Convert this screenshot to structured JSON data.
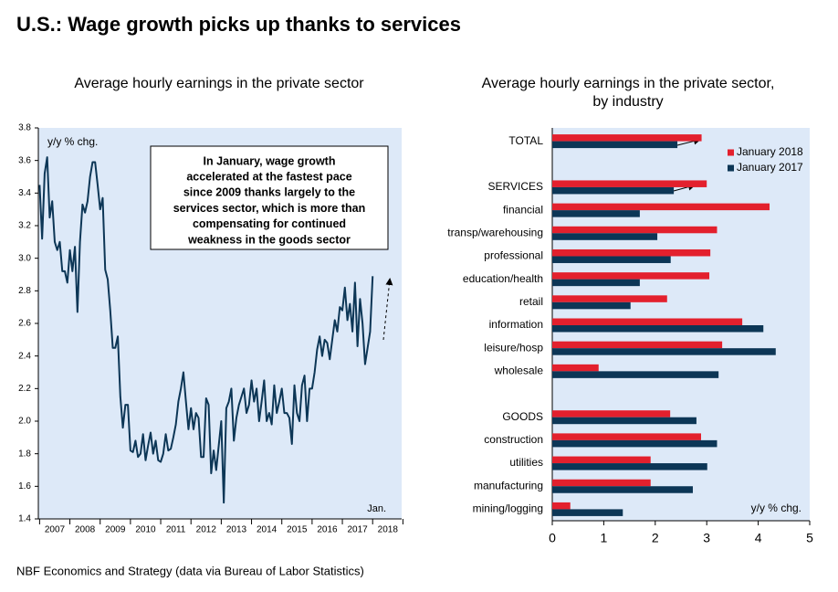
{
  "title": "U.S.: Wage growth picks up thanks to services",
  "source": "NBF Economics and Strategy (data via Bureau of Labor Statistics)",
  "chart_data": [
    {
      "type": "line",
      "title": "Average hourly earnings  in the private sector",
      "y_label": "y/y % chg.",
      "annotation": [
        "In January, wage growth",
        "accelerated at the fastest pace",
        "since 2009 thanks largely to the",
        "services sector, which is more than",
        "compensating for continued",
        "weakness in the goods sector"
      ],
      "end_label": "Jan.",
      "color": "#0c3656",
      "grid": false,
      "ylim": [
        1.4,
        3.8
      ],
      "yticks": [
        1.4,
        1.6,
        1.8,
        {
          "value": 2,
          "label": "2.0"
        },
        2.2,
        2.4,
        2.6,
        2.8,
        {
          "value": 3,
          "label": "3.0"
        },
        3.2,
        3.4,
        3.6,
        3.8
      ],
      "categories": [
        null,
        null,
        null,
        null,
        null,
        null,
        "2007",
        null,
        null,
        null,
        null,
        null,
        null,
        null,
        null,
        null,
        null,
        null,
        "2008",
        null,
        null,
        null,
        null,
        null,
        null,
        null,
        null,
        null,
        null,
        null,
        "2009",
        null,
        null,
        null,
        null,
        null,
        null,
        null,
        null,
        null,
        null,
        null,
        "2010",
        null,
        null,
        null,
        null,
        null,
        null,
        null,
        null,
        null,
        null,
        null,
        "2011",
        null,
        null,
        null,
        null,
        null,
        null,
        null,
        null,
        null,
        null,
        null,
        "2012",
        null,
        null,
        null,
        null,
        null,
        null,
        null,
        null,
        null,
        null,
        null,
        "2013",
        null,
        null,
        null,
        null,
        null,
        null,
        null,
        null,
        null,
        null,
        null,
        "2014",
        null,
        null,
        null,
        null,
        null,
        null,
        null,
        null,
        null,
        null,
        null,
        "2015",
        null,
        null,
        null,
        null,
        null,
        null,
        null,
        null,
        null,
        null,
        null,
        "2016",
        null,
        null,
        null,
        null,
        null,
        null,
        null,
        null,
        null,
        null,
        null,
        "2017",
        null,
        null,
        null,
        null,
        null,
        null,
        null,
        null,
        null,
        null,
        null,
        "2018",
        null,
        null,
        null,
        null,
        null
      ],
      "values": [
        3.45,
        3.12,
        3.52,
        3.62,
        3.25,
        3.35,
        3.1,
        3.05,
        3.1,
        2.92,
        2.92,
        2.85,
        3.05,
        2.92,
        3.07,
        2.67,
        3.1,
        3.33,
        3.28,
        3.35,
        3.5,
        3.59,
        3.59,
        3.45,
        3.3,
        3.37,
        2.93,
        2.87,
        2.68,
        2.45,
        2.45,
        2.52,
        2.15,
        1.96,
        2.1,
        2.1,
        1.82,
        1.81,
        1.88,
        1.78,
        1.8,
        1.92,
        1.76,
        1.85,
        1.93,
        1.8,
        1.88,
        1.76,
        1.75,
        1.8,
        1.92,
        1.82,
        1.83,
        1.9,
        1.98,
        2.12,
        2.2,
        2.3,
        2.12,
        1.95,
        2.08,
        1.95,
        2.05,
        2.02,
        1.78,
        1.78,
        2.14,
        2.1,
        1.68,
        1.82,
        1.7,
        1.85,
        2.0,
        1.5,
        2.08,
        2.12,
        2.2,
        1.88,
        2.02,
        2.1,
        2.15,
        2.2,
        2.05,
        2.1,
        2.25,
        2.12,
        2.2,
        2.0,
        2.12,
        2.25,
        2.0,
        2.05,
        1.98,
        2.22,
        2.05,
        2.12,
        2.2,
        2.05,
        2.05,
        2.02,
        1.86,
        2.22,
        2.05,
        2.0,
        2.22,
        2.28,
        2.0,
        2.2,
        2.2,
        2.3,
        2.44,
        2.52,
        2.4,
        2.5,
        2.48,
        2.38,
        2.5,
        2.62,
        2.55,
        2.7,
        2.68,
        2.82,
        2.62,
        2.72,
        2.55,
        2.85,
        2.46,
        2.75,
        2.6,
        2.35,
        2.45,
        2.55,
        2.89,
        null,
        null,
        null,
        null,
        null,
        null,
        null,
        null,
        null,
        null,
        null
      ]
    },
    {
      "type": "bar",
      "orientation": "horizontal",
      "title": "Average hourly earnings  in the private sector,",
      "subtitle": "by industry",
      "x_label": "y/y % chg.",
      "legend": "top-right",
      "grid": false,
      "xlim": [
        0,
        5
      ],
      "xticks": [
        0,
        1,
        2,
        3,
        4,
        5
      ],
      "categories": [
        "TOTAL",
        null,
        "SERVICES",
        "financial",
        "transp/warehousing",
        "professional",
        "education/health",
        "retail",
        "information",
        "leisure/hosp",
        "wholesale",
        null,
        "GOODS",
        "construction",
        "utilities",
        "manufacturing",
        "mining/logging"
      ],
      "series": [
        {
          "name": "January 2018",
          "color": "#e3202d",
          "values": [
            2.9,
            null,
            3.0,
            4.22,
            3.2,
            3.07,
            3.05,
            2.23,
            3.69,
            3.3,
            0.9,
            null,
            2.29,
            2.89,
            1.91,
            1.91,
            0.35
          ]
        },
        {
          "name": "January 2017",
          "color": "#0c3656",
          "values": [
            2.43,
            null,
            2.36,
            1.7,
            2.04,
            2.3,
            1.7,
            1.52,
            4.1,
            4.34,
            3.23,
            null,
            2.8,
            3.2,
            3.01,
            2.73,
            1.37
          ]
        }
      ]
    }
  ]
}
